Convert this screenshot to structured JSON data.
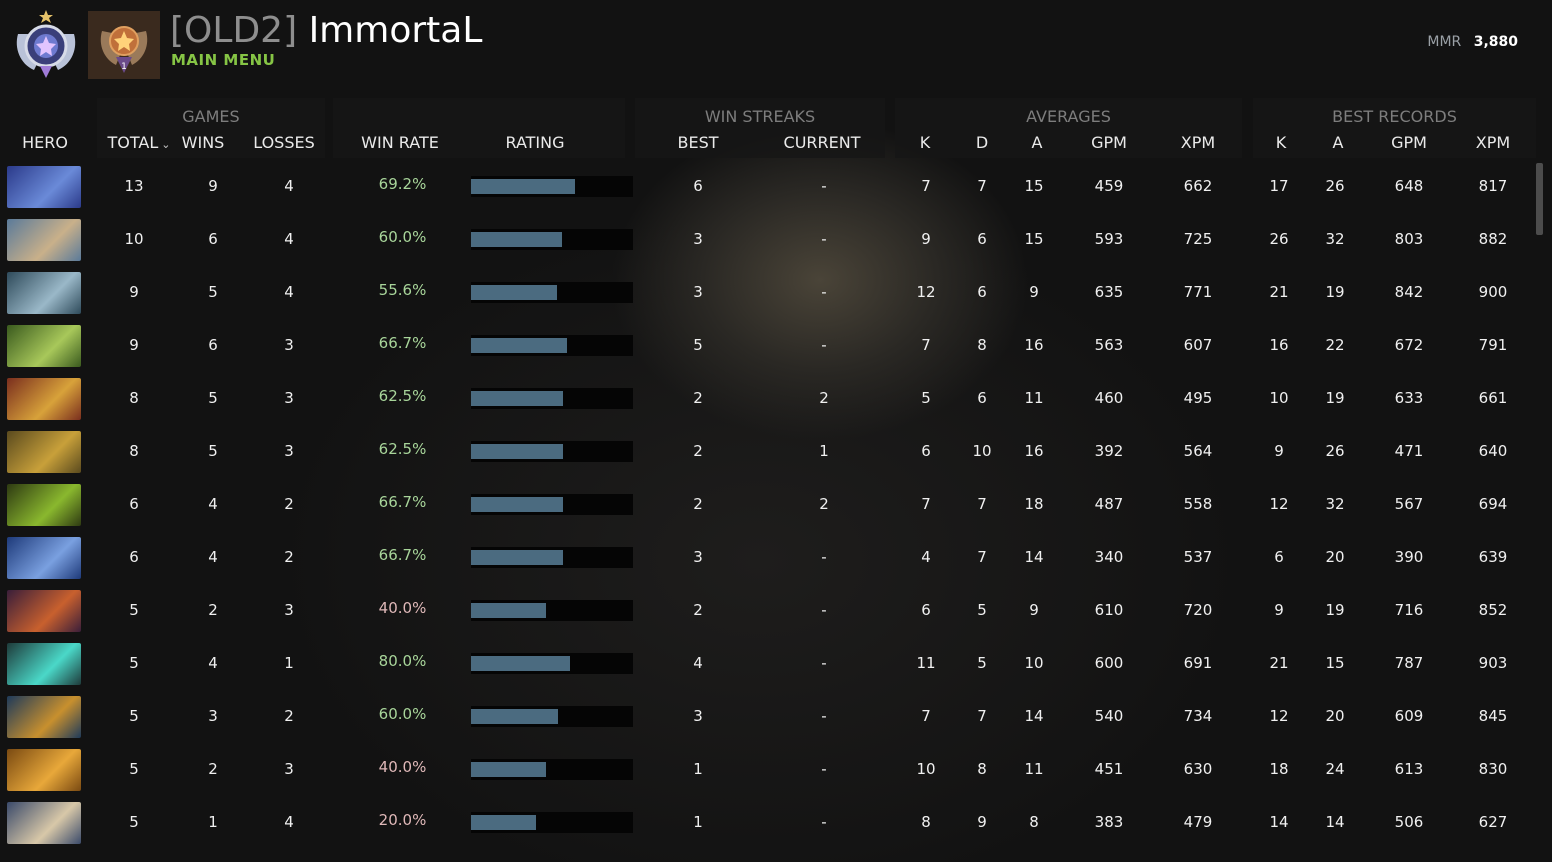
{
  "header": {
    "team_tag": "[OLD2]",
    "player_name": "ImmortaL",
    "menu_label": "MAIN MENU",
    "leaderboard_rank": "1",
    "mmr_label": "MMR",
    "mmr_value": "3,880"
  },
  "groups": {
    "games": "GAMES",
    "win_streaks": "WIN STREAKS",
    "averages": "AVERAGES",
    "best_records": "BEST RECORDS"
  },
  "columns": {
    "hero": "HERO",
    "total": "TOTAL",
    "wins": "WINS",
    "losses": "LOSSES",
    "win_rate": "WIN RATE",
    "rating": "RATING",
    "best": "BEST",
    "current": "CURRENT",
    "avg_k": "K",
    "avg_d": "D",
    "avg_a": "A",
    "avg_gpm": "GPM",
    "avg_xpm": "XPM",
    "best_k": "K",
    "best_a": "A",
    "best_gpm": "GPM",
    "best_xpm": "XPM"
  },
  "colors": {
    "win_rate_good": "#a8d59a",
    "win_rate_poor": "#dfb8b8",
    "rating_bar": "#4b6b80",
    "menu_green": "#86c545"
  },
  "rows": [
    {
      "hero_icon": "riki-portrait",
      "total": "13",
      "wins": "9",
      "losses": "4",
      "win_rate": "69.2%",
      "rating": 0.64,
      "best": "6",
      "current": "-",
      "avg_k": "7",
      "avg_d": "7",
      "avg_a": "15",
      "avg_gpm": "459",
      "avg_xpm": "662",
      "best_k": "17",
      "best_a": "26",
      "best_gpm": "648",
      "best_xpm": "817"
    },
    {
      "hero_icon": "kunkka-portrait",
      "total": "10",
      "wins": "6",
      "losses": "4",
      "win_rate": "60.0%",
      "rating": 0.56,
      "best": "3",
      "current": "-",
      "avg_k": "9",
      "avg_d": "6",
      "avg_a": "15",
      "avg_gpm": "593",
      "avg_xpm": "725",
      "best_k": "26",
      "best_a": "32",
      "best_gpm": "803",
      "best_xpm": "882"
    },
    {
      "hero_icon": "hero-portrait",
      "total": "9",
      "wins": "5",
      "losses": "4",
      "win_rate": "55.6%",
      "rating": 0.53,
      "best": "3",
      "current": "-",
      "avg_k": "12",
      "avg_d": "6",
      "avg_a": "9",
      "avg_gpm": "635",
      "avg_xpm": "771",
      "best_k": "21",
      "best_a": "19",
      "best_gpm": "842",
      "best_xpm": "900"
    },
    {
      "hero_icon": "hero-portrait",
      "total": "9",
      "wins": "6",
      "losses": "3",
      "win_rate": "66.7%",
      "rating": 0.59,
      "best": "5",
      "current": "-",
      "avg_k": "7",
      "avg_d": "8",
      "avg_a": "16",
      "avg_gpm": "563",
      "avg_xpm": "607",
      "best_k": "16",
      "best_a": "22",
      "best_gpm": "672",
      "best_xpm": "791"
    },
    {
      "hero_icon": "hero-portrait",
      "total": "8",
      "wins": "5",
      "losses": "3",
      "win_rate": "62.5%",
      "rating": 0.57,
      "best": "2",
      "current": "2",
      "avg_k": "5",
      "avg_d": "6",
      "avg_a": "11",
      "avg_gpm": "460",
      "avg_xpm": "495",
      "best_k": "10",
      "best_a": "19",
      "best_gpm": "633",
      "best_xpm": "661"
    },
    {
      "hero_icon": "hero-portrait",
      "total": "8",
      "wins": "5",
      "losses": "3",
      "win_rate": "62.5%",
      "rating": 0.57,
      "best": "2",
      "current": "1",
      "avg_k": "6",
      "avg_d": "10",
      "avg_a": "16",
      "avg_gpm": "392",
      "avg_xpm": "564",
      "best_k": "9",
      "best_a": "26",
      "best_gpm": "471",
      "best_xpm": "640"
    },
    {
      "hero_icon": "hero-portrait",
      "total": "6",
      "wins": "4",
      "losses": "2",
      "win_rate": "66.7%",
      "rating": 0.57,
      "best": "2",
      "current": "2",
      "avg_k": "7",
      "avg_d": "7",
      "avg_a": "18",
      "avg_gpm": "487",
      "avg_xpm": "558",
      "best_k": "12",
      "best_a": "32",
      "best_gpm": "567",
      "best_xpm": "694"
    },
    {
      "hero_icon": "hero-portrait",
      "total": "6",
      "wins": "4",
      "losses": "2",
      "win_rate": "66.7%",
      "rating": 0.57,
      "best": "3",
      "current": "-",
      "avg_k": "4",
      "avg_d": "7",
      "avg_a": "14",
      "avg_gpm": "340",
      "avg_xpm": "537",
      "best_k": "6",
      "best_a": "20",
      "best_gpm": "390",
      "best_xpm": "639"
    },
    {
      "hero_icon": "hero-portrait",
      "total": "5",
      "wins": "2",
      "losses": "3",
      "win_rate": "40.0%",
      "rating": 0.46,
      "best": "2",
      "current": "-",
      "avg_k": "6",
      "avg_d": "5",
      "avg_a": "9",
      "avg_gpm": "610",
      "avg_xpm": "720",
      "best_k": "9",
      "best_a": "19",
      "best_gpm": "716",
      "best_xpm": "852"
    },
    {
      "hero_icon": "hero-portrait",
      "total": "5",
      "wins": "4",
      "losses": "1",
      "win_rate": "80.0%",
      "rating": 0.61,
      "best": "4",
      "current": "-",
      "avg_k": "11",
      "avg_d": "5",
      "avg_a": "10",
      "avg_gpm": "600",
      "avg_xpm": "691",
      "best_k": "21",
      "best_a": "15",
      "best_gpm": "787",
      "best_xpm": "903"
    },
    {
      "hero_icon": "hero-portrait",
      "total": "5",
      "wins": "3",
      "losses": "2",
      "win_rate": "60.0%",
      "rating": 0.54,
      "best": "3",
      "current": "-",
      "avg_k": "7",
      "avg_d": "7",
      "avg_a": "14",
      "avg_gpm": "540",
      "avg_xpm": "734",
      "best_k": "12",
      "best_a": "20",
      "best_gpm": "609",
      "best_xpm": "845"
    },
    {
      "hero_icon": "hero-portrait",
      "total": "5",
      "wins": "2",
      "losses": "3",
      "win_rate": "40.0%",
      "rating": 0.46,
      "best": "1",
      "current": "-",
      "avg_k": "10",
      "avg_d": "8",
      "avg_a": "11",
      "avg_gpm": "451",
      "avg_xpm": "630",
      "best_k": "18",
      "best_a": "24",
      "best_gpm": "613",
      "best_xpm": "830"
    },
    {
      "hero_icon": "hero-portrait",
      "total": "5",
      "wins": "1",
      "losses": "4",
      "win_rate": "20.0%",
      "rating": 0.4,
      "best": "1",
      "current": "-",
      "avg_k": "8",
      "avg_d": "9",
      "avg_a": "8",
      "avg_gpm": "383",
      "avg_xpm": "479",
      "best_k": "14",
      "best_a": "14",
      "best_gpm": "506",
      "best_xpm": "627"
    }
  ]
}
